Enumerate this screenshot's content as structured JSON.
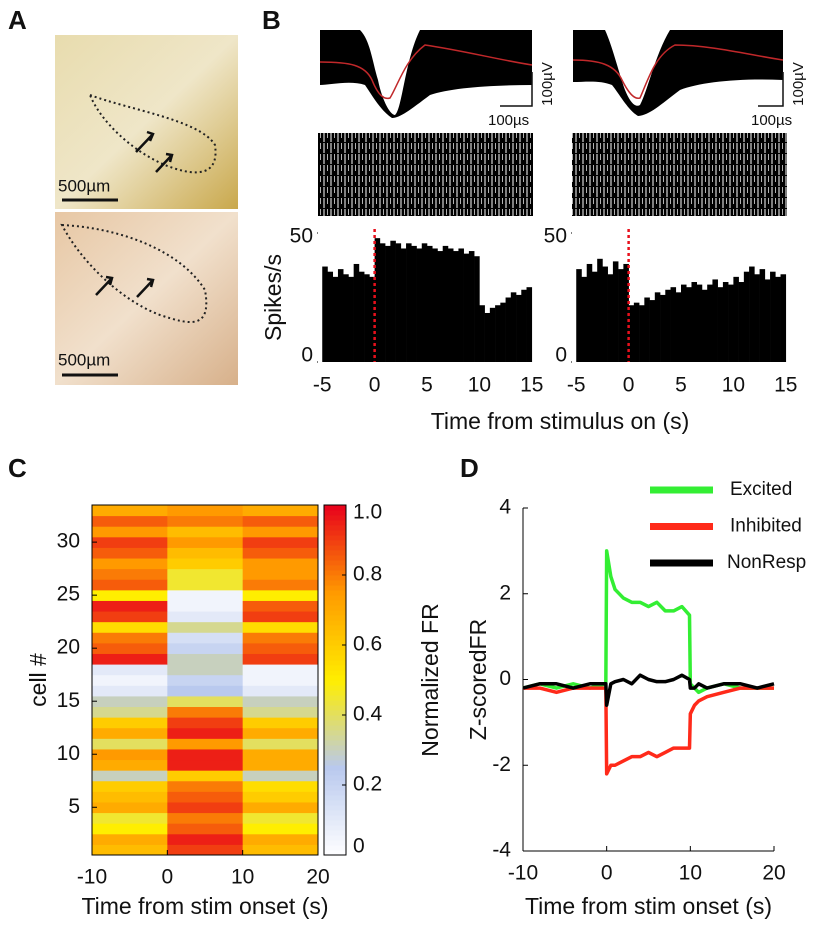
{
  "panel_labels": [
    "A",
    "B",
    "C",
    "D"
  ],
  "histology": {
    "scale_bar_labels": [
      "500µm",
      "500µm"
    ]
  },
  "waveforms": [
    {
      "time_scale": "100µs",
      "voltage_scale": "100µV"
    },
    {
      "time_scale": "100µs",
      "voltage_scale": "100µV"
    }
  ],
  "chart_data": [
    {
      "type": "histogram",
      "ylabel": "Spikes/s",
      "color": "#000000",
      "marker_x": 0,
      "marker_color": "#e8101c",
      "bins": [
        -5,
        -4.5,
        -4,
        -3.5,
        -3,
        -2.5,
        -2,
        -1.5,
        -1,
        -0.5,
        0,
        0.5,
        1,
        1.5,
        2,
        2.5,
        3,
        3.5,
        4,
        4.5,
        5,
        5.5,
        6,
        6.5,
        7,
        7.5,
        8,
        8.5,
        9,
        9.5,
        10,
        10.5,
        11,
        11.5,
        12,
        12.5,
        13,
        13.5,
        14,
        14.5,
        15
      ],
      "values": [
        37,
        35,
        33,
        36,
        34,
        33,
        38,
        35,
        34,
        33,
        48,
        46,
        45,
        47,
        46,
        44,
        46,
        45,
        44,
        46,
        45,
        44,
        43,
        45,
        44,
        43,
        44,
        42,
        43,
        41,
        22,
        19,
        21,
        22,
        23,
        25,
        27,
        26,
        28,
        29
      ],
      "xlim": [
        -5.5,
        15.5
      ],
      "xticks": [
        -5,
        0,
        5,
        10,
        15
      ],
      "ylim": [
        0,
        50
      ],
      "yticks": [
        0,
        50
      ]
    },
    {
      "type": "histogram",
      "xlabel": "Time from stimulus on (s)",
      "color": "#000000",
      "marker_x": 0,
      "marker_color": "#e8101c",
      "bins": [
        -5,
        -4.5,
        -4,
        -3.5,
        -3,
        -2.5,
        -2,
        -1.5,
        -1,
        -0.5,
        0,
        0.5,
        1,
        1.5,
        2,
        2.5,
        3,
        3.5,
        4,
        4.5,
        5,
        5.5,
        6,
        6.5,
        7,
        7.5,
        8,
        8.5,
        9,
        9.5,
        10,
        10.5,
        11,
        11.5,
        12,
        12.5,
        13,
        13.5,
        14,
        14.5,
        15
      ],
      "values": [
        36,
        33,
        38,
        35,
        40,
        37,
        34,
        39,
        36,
        38,
        22,
        23,
        22,
        25,
        24,
        27,
        26,
        28,
        29,
        27,
        30,
        29,
        31,
        30,
        28,
        30,
        32,
        29,
        31,
        30,
        33,
        31,
        35,
        37,
        34,
        36,
        32,
        35,
        33,
        34
      ],
      "xlim": [
        -5.5,
        15.5
      ],
      "xticks": [
        -5,
        0,
        5,
        10,
        15
      ],
      "ylim": [
        0,
        50
      ],
      "yticks": [
        0,
        50
      ]
    },
    {
      "type": "heatmap",
      "xlabel": "Time from stim onset (s)",
      "ylabel": "cell #",
      "colorbar_label": "Normalized FR",
      "x": [
        -10,
        0,
        10,
        20
      ],
      "xlim": [
        -10,
        20
      ],
      "xticks": [
        -10,
        0,
        10,
        20
      ],
      "ylim": [
        0.5,
        33.5
      ],
      "yticks": [
        5,
        10,
        15,
        20,
        25,
        30
      ],
      "zlim": [
        0,
        1
      ],
      "zticks": [
        0,
        0.2,
        0.4,
        0.6,
        0.8,
        {
          "value": 1,
          "label": "1.0"
        }
      ],
      "colormap": [
        "#ffffff",
        "#b9c9ee",
        "#ffee00",
        "#ff9a00",
        "#e8001c"
      ],
      "z": [
        [
          0.65,
          0.9,
          0.65
        ],
        [
          0.7,
          0.95,
          0.7
        ],
        [
          0.5,
          0.85,
          0.5
        ],
        [
          0.45,
          0.8,
          0.45
        ],
        [
          0.7,
          0.9,
          0.7
        ],
        [
          0.65,
          0.85,
          0.6
        ],
        [
          0.6,
          0.8,
          0.55
        ],
        [
          0.3,
          0.6,
          0.3
        ],
        [
          0.7,
          0.95,
          0.7
        ],
        [
          0.75,
          0.95,
          0.7
        ],
        [
          0.4,
          0.75,
          0.4
        ],
        [
          0.7,
          0.95,
          0.7
        ],
        [
          0.6,
          0.9,
          0.6
        ],
        [
          0.35,
          0.8,
          0.35
        ],
        [
          0.3,
          0.4,
          0.3
        ],
        [
          0.1,
          0.25,
          0.1
        ],
        [
          0.05,
          0.2,
          0.05
        ],
        [
          0.1,
          0.3,
          0.05
        ],
        [
          0.95,
          0.3,
          0.9
        ],
        [
          0.85,
          0.2,
          0.85
        ],
        [
          0.8,
          0.15,
          0.8
        ],
        [
          0.55,
          0.35,
          0.55
        ],
        [
          0.9,
          0.1,
          0.9
        ],
        [
          0.95,
          0.05,
          0.85
        ],
        [
          0.5,
          0.05,
          0.5
        ],
        [
          0.85,
          0.45,
          0.8
        ],
        [
          0.8,
          0.45,
          0.75
        ],
        [
          0.75,
          0.6,
          0.75
        ],
        [
          0.85,
          0.65,
          0.85
        ],
        [
          0.9,
          0.75,
          0.9
        ],
        [
          0.75,
          0.65,
          0.75
        ],
        [
          0.85,
          0.8,
          0.85
        ],
        [
          0.7,
          0.75,
          0.7
        ]
      ]
    },
    {
      "type": "line",
      "xlabel": "Time from stim onset (s)",
      "ylabel": "Z-scoredFR",
      "legend": "upper right",
      "x": [
        -10,
        -8,
        -6,
        -4,
        -2,
        -0.1,
        0,
        0.5,
        1,
        2,
        3,
        4,
        5,
        6,
        7,
        8,
        9,
        9.9,
        10,
        10.5,
        11,
        12,
        14,
        16,
        18,
        20
      ],
      "series": [
        {
          "name": "Excited",
          "color": "#33ee33",
          "values": [
            -0.2,
            -0.1,
            -0.2,
            -0.1,
            -0.2,
            -0.1,
            3.0,
            2.4,
            2.1,
            1.9,
            1.8,
            1.8,
            1.7,
            1.8,
            1.6,
            1.6,
            1.7,
            1.5,
            -0.1,
            -0.2,
            -0.3,
            -0.2,
            -0.1,
            -0.2,
            -0.2,
            -0.2
          ]
        },
        {
          "name": "Inhibited",
          "color": "#ff2a1a",
          "values": [
            -0.2,
            -0.2,
            -0.3,
            -0.2,
            -0.2,
            -0.2,
            -2.2,
            -2.0,
            -2.0,
            -1.9,
            -1.8,
            -1.8,
            -1.7,
            -1.8,
            -1.7,
            -1.6,
            -1.6,
            -1.6,
            -0.8,
            -0.6,
            -0.5,
            -0.4,
            -0.3,
            -0.2,
            -0.2,
            -0.2
          ]
        },
        {
          "name": "NonResp",
          "color": "#000000",
          "values": [
            -0.2,
            -0.1,
            -0.1,
            -0.2,
            -0.1,
            -0.1,
            -0.6,
            -0.1,
            -0.05,
            0,
            -0.1,
            0.1,
            0,
            -0.05,
            -0.05,
            0,
            0.1,
            0,
            -0.2,
            -0.2,
            -0.1,
            -0.2,
            -0.1,
            -0.1,
            -0.2,
            -0.1
          ]
        }
      ],
      "xlim": [
        -10,
        20
      ],
      "xticks": [
        -10,
        0,
        10,
        20
      ],
      "ylim": [
        -4,
        4
      ],
      "yticks": [
        -4,
        -2,
        0,
        2,
        4
      ]
    }
  ]
}
